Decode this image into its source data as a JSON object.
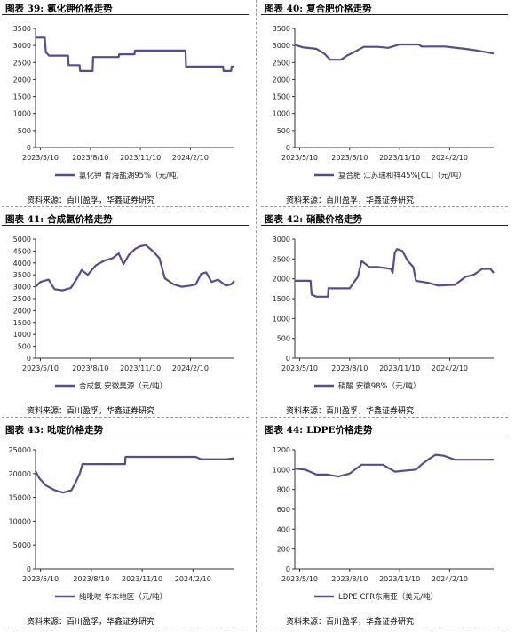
{
  "colors": {
    "line": "#5b4a8f",
    "axis": "#333333",
    "text": "#222222"
  },
  "panels": [
    {
      "fig": "图表 39:",
      "title": "氯化钾价格走势",
      "source": "资料来源：百川盈孚，华鑫证券研究",
      "chart_data": {
        "type": "line",
        "x_ticks": [
          "2023/5/10",
          "2023/8/10",
          "2023/11/10",
          "2024/2/10"
        ],
        "x_range": [
          "2023-05-01",
          "2024-05-01"
        ],
        "ylim": [
          0,
          3500
        ],
        "yticks": [
          0,
          500,
          1000,
          1500,
          2000,
          2500,
          3000,
          3500
        ],
        "series": [
          {
            "name": "氯化钾 青海盐湖95%（元/吨）",
            "x": [
              "2023-05-01",
              "2023-05-18",
              "2023-05-20",
              "2023-05-26",
              "2023-06-30",
              "2023-07-01",
              "2023-07-21",
              "2023-07-22",
              "2023-08-14",
              "2023-08-15",
              "2023-10-01",
              "2023-10-02",
              "2023-10-30",
              "2023-10-31",
              "2024-02-01",
              "2024-02-02",
              "2024-04-10",
              "2024-04-11",
              "2024-04-25",
              "2024-04-26",
              "2024-05-01"
            ],
            "y": [
              3230,
              3230,
              2800,
              2700,
              2700,
              2420,
              2420,
              2250,
              2250,
              2660,
              2660,
              2740,
              2740,
              2850,
              2850,
              2380,
              2380,
              2250,
              2250,
              2380,
              2380
            ]
          }
        ]
      }
    },
    {
      "fig": "图表 40:",
      "title": "复合肥价格走势",
      "source": "资料来源：百川盈孚，华鑫证券研究",
      "chart_data": {
        "type": "line",
        "x_ticks": [
          "2023/5/10",
          "2023/8/10",
          "2023/11/10",
          "2024/2/10"
        ],
        "x_range": [
          "2023-05-01",
          "2024-05-01"
        ],
        "ylim": [
          0,
          3500
        ],
        "yticks": [
          0,
          500,
          1000,
          1500,
          2000,
          2500,
          3000,
          3500
        ],
        "series": [
          {
            "name": "复合肥 江苏瑞和祥45%[CL]（元/吨）",
            "x": [
              "2023-05-01",
              "2023-05-15",
              "2023-06-10",
              "2023-06-25",
              "2023-07-05",
              "2023-07-25",
              "2023-08-05",
              "2023-08-15",
              "2023-09-05",
              "2023-10-01",
              "2023-10-20",
              "2023-11-10",
              "2023-12-15",
              "2023-12-20",
              "2024-02-01",
              "2024-03-10",
              "2024-04-01",
              "2024-04-25",
              "2024-05-01"
            ],
            "y": [
              3020,
              2950,
              2900,
              2750,
              2580,
              2580,
              2700,
              2780,
              2960,
              2960,
              2930,
              3030,
              3030,
              2970,
              2970,
              2900,
              2850,
              2780,
              2760
            ]
          }
        ]
      }
    },
    {
      "fig": "图表 41:",
      "title": "合成氨价格走势",
      "source": "资料来源：百川盈孚，华鑫证券研究",
      "chart_data": {
        "type": "line",
        "x_ticks": [
          "2023/5/10",
          "2023/8/10",
          "2023/11/10",
          "2024/2/10"
        ],
        "x_range": [
          "2023-05-01",
          "2024-05-01"
        ],
        "ylim": [
          0,
          5000
        ],
        "yticks": [
          0,
          500,
          1000,
          1500,
          2000,
          2500,
          3000,
          3500,
          4000,
          4500,
          5000
        ],
        "series": [
          {
            "name": "合成氨 安徽昊源（元/吨）",
            "x": [
              "2023-05-01",
              "2023-05-10",
              "2023-05-25",
              "2023-06-05",
              "2023-06-20",
              "2023-07-05",
              "2023-07-15",
              "2023-07-25",
              "2023-08-05",
              "2023-08-20",
              "2023-09-05",
              "2023-09-20",
              "2023-10-01",
              "2023-10-10",
              "2023-10-20",
              "2023-11-01",
              "2023-11-10",
              "2023-11-20",
              "2023-12-05",
              "2023-12-15",
              "2023-12-25",
              "2024-01-10",
              "2024-01-25",
              "2024-02-10",
              "2024-02-20",
              "2024-03-01",
              "2024-03-10",
              "2024-03-20",
              "2024-04-01",
              "2024-04-15",
              "2024-04-25",
              "2024-05-01"
            ],
            "y": [
              3000,
              3200,
              3300,
              2900,
              2850,
              2950,
              3300,
              3700,
              3500,
              3900,
              4100,
              4200,
              4400,
              3950,
              4350,
              4600,
              4700,
              4750,
              4450,
              4200,
              3350,
              3100,
              3000,
              3050,
              3100,
              3550,
              3600,
              3200,
              3300,
              3050,
              3100,
              3250
            ]
          }
        ]
      }
    },
    {
      "fig": "图表 42:",
      "title": "硝酸价格走势",
      "source": "资料来源：百川盈孚，华鑫证券研究",
      "chart_data": {
        "type": "line",
        "x_ticks": [
          "2023/5/10",
          "2023/8/10",
          "2023/11/10",
          "2024/2/10"
        ],
        "x_range": [
          "2023-05-01",
          "2024-05-01"
        ],
        "ylim": [
          0,
          3000
        ],
        "yticks": [
          0,
          500,
          1000,
          1500,
          2000,
          2500,
          3000
        ],
        "series": [
          {
            "name": "硝酸 安徽98%（元/吨）",
            "x": [
              "2023-05-01",
              "2023-05-30",
              "2023-06-01",
              "2023-06-10",
              "2023-07-01",
              "2023-07-02",
              "2023-08-10",
              "2023-08-25",
              "2023-09-01",
              "2023-09-15",
              "2023-10-01",
              "2023-10-25",
              "2023-10-28",
              "2023-11-01",
              "2023-11-05",
              "2023-11-15",
              "2023-11-25",
              "2023-12-05",
              "2023-12-10",
              "2024-01-01",
              "2024-01-20",
              "2024-02-20",
              "2024-03-10",
              "2024-03-25",
              "2024-04-10",
              "2024-04-25",
              "2024-05-01"
            ],
            "y": [
              1950,
              1950,
              1600,
              1550,
              1550,
              1760,
              1760,
              2050,
              2450,
              2300,
              2300,
              2250,
              2150,
              2650,
              2750,
              2700,
              2450,
              2300,
              1950,
              1900,
              1830,
              1850,
              2050,
              2100,
              2250,
              2250,
              2150
            ]
          }
        ]
      }
    },
    {
      "fig": "图表 43:",
      "title": "吡啶价格走势",
      "source": "资料来源：百川盈孚，华鑫证券研究",
      "chart_data": {
        "type": "line",
        "x_ticks": [
          "2023/5/10",
          "2023/8/10",
          "2023/11/10",
          "2024/2/10"
        ],
        "x_range": [
          "2023-05-01",
          "2024-04-25"
        ],
        "ylim": [
          0,
          25000
        ],
        "yticks": [
          0,
          5000,
          10000,
          15000,
          20000,
          25000
        ],
        "series": [
          {
            "name": "纯吡啶 华东地区（元/吨）",
            "x": [
              "2023-05-01",
              "2023-05-08",
              "2023-05-20",
              "2023-06-05",
              "2023-06-20",
              "2023-07-05",
              "2023-07-12",
              "2023-07-20",
              "2023-07-25",
              "2023-10-10",
              "2023-10-11",
              "2024-02-15",
              "2024-02-25",
              "2024-04-10",
              "2024-04-25"
            ],
            "y": [
              20500,
              19000,
              17500,
              16500,
              16000,
              16500,
              18000,
              20000,
              22000,
              22000,
              23500,
              23500,
              23000,
              23000,
              23200
            ]
          }
        ]
      }
    },
    {
      "fig": "图表 44:",
      "title": "LDPE价格走势",
      "source": "资料来源：百川盈孚，华鑫证券研究",
      "chart_data": {
        "type": "line",
        "x_ticks": [
          "2023/5/10",
          "2023/8/10",
          "2023/11/10",
          "2024/2/10"
        ],
        "x_range": [
          "2023-05-01",
          "2024-05-01"
        ],
        "ylim": [
          0,
          1200
        ],
        "yticks": [
          0,
          200,
          400,
          600,
          800,
          1000,
          1200
        ],
        "series": [
          {
            "name": "LDPE CFR东南亚（美元/吨）",
            "x": [
              "2023-05-01",
              "2023-05-20",
              "2023-06-10",
              "2023-06-30",
              "2023-07-20",
              "2023-08-10",
              "2023-09-01",
              "2023-10-10",
              "2023-11-01",
              "2023-12-10",
              "2023-12-20",
              "2024-01-01",
              "2024-01-15",
              "2024-01-30",
              "2024-02-20",
              "2024-03-10",
              "2024-04-10",
              "2024-05-01"
            ],
            "y": [
              1010,
              1000,
              950,
              950,
              930,
              960,
              1050,
              1050,
              980,
              1000,
              1050,
              1100,
              1150,
              1140,
              1100,
              1100,
              1100,
              1100
            ]
          }
        ]
      }
    }
  ]
}
